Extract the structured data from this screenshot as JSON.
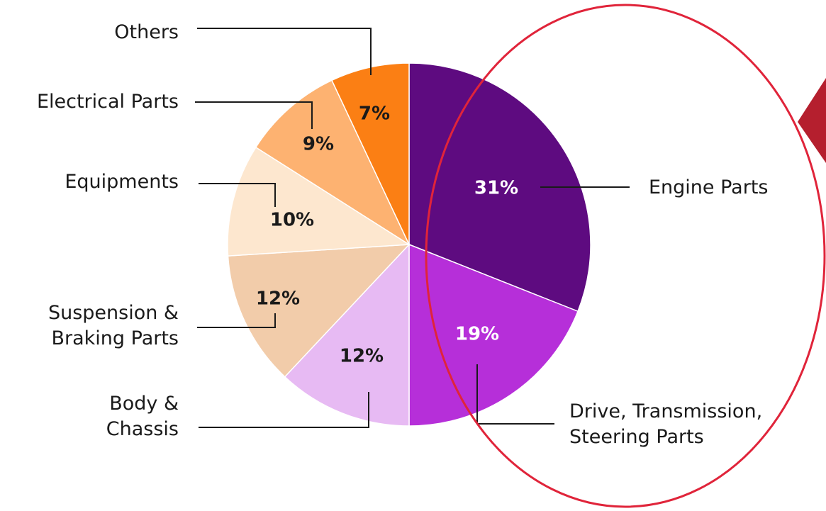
{
  "chart_data": {
    "type": "pie",
    "start_angle": "12 o'clock, clockwise",
    "slices": [
      {
        "label_lines": [
          "Engine Parts"
        ],
        "value": 31,
        "value_label": "31%",
        "color": "#5e0b80",
        "text_color": "#ffffff"
      },
      {
        "label_lines": [
          "Drive, Transmission,",
          "Steering Parts"
        ],
        "value": 19,
        "value_label": "19%",
        "color": "#b62fd9",
        "text_color": "#ffffff"
      },
      {
        "label_lines": [
          "Body &",
          "Chassis"
        ],
        "value": 12,
        "value_label": "12%",
        "color": "#e7baf3",
        "text_color": "#1a1a1a"
      },
      {
        "label_lines": [
          "Suspension &",
          "Braking Parts"
        ],
        "value": 12,
        "value_label": "12%",
        "color": "#f2ccaa",
        "text_color": "#1a1a1a"
      },
      {
        "label_lines": [
          "Equipments"
        ],
        "value": 10,
        "value_label": "10%",
        "color": "#fde7cf",
        "text_color": "#1a1a1a"
      },
      {
        "label_lines": [
          "Electrical Parts"
        ],
        "value": 9,
        "value_label": "9%",
        "color": "#fdb271",
        "text_color": "#1a1a1a"
      },
      {
        "label_lines": [
          "Others"
        ],
        "value": 7,
        "value_label": "7%",
        "color": "#fb7f14",
        "text_color": "#1a1a1a"
      }
    ],
    "legend": "callout labels with leader lines"
  },
  "annotations": {
    "highlight_ellipse_color": "#e0243a",
    "arrow_color": "#b51f2e"
  }
}
